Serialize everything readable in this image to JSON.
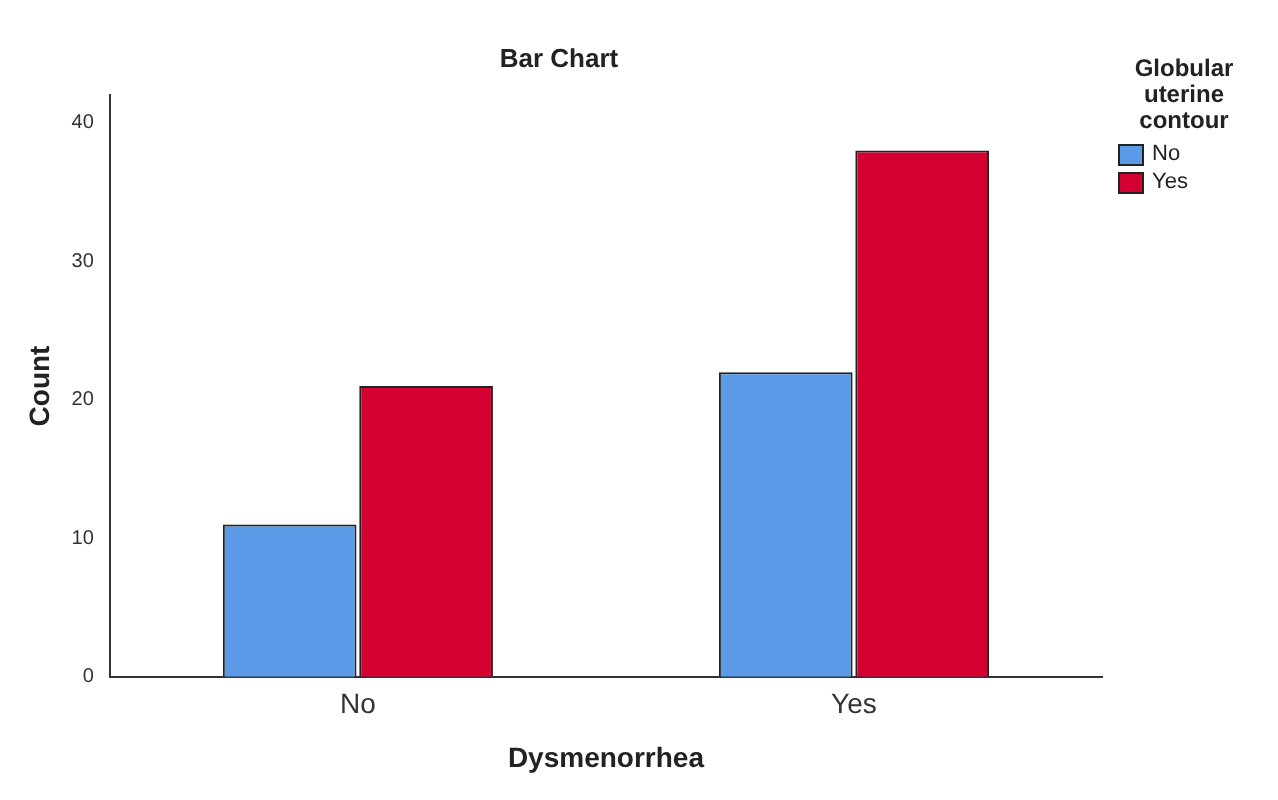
{
  "chart_data": {
    "type": "bar",
    "title": "Bar Chart",
    "xlabel": "Dysmenorrhea",
    "ylabel": "Count",
    "legend_title": "Globular uterine contour",
    "categories": [
      "No",
      "Yes"
    ],
    "series": [
      {
        "name": "No",
        "color": "#5b9ae6",
        "values": [
          11,
          22
        ]
      },
      {
        "name": "Yes",
        "color": "#d50032",
        "values": [
          21,
          38
        ]
      }
    ],
    "ylim": [
      0,
      42
    ],
    "yticks": [
      0,
      10,
      20,
      30,
      40
    ],
    "grid": false,
    "legend": "top right"
  }
}
